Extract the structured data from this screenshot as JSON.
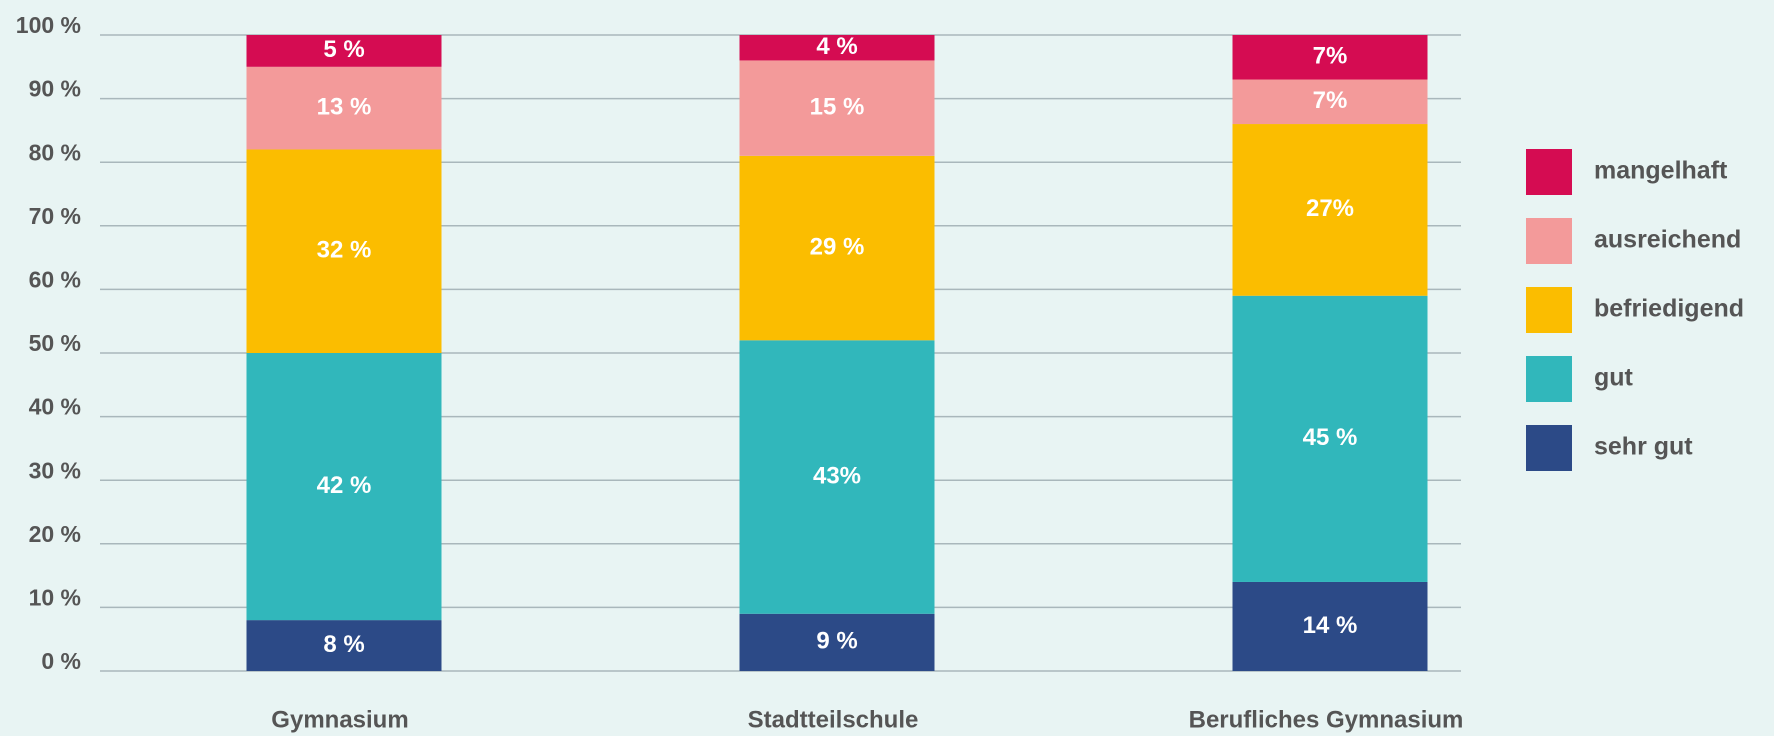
{
  "chart_data": {
    "type": "stacked_bar",
    "categories": [
      "Gymnasium",
      "Stadtteilschule",
      "Berufliches Gymnasium"
    ],
    "series": [
      {
        "name": "sehr gut",
        "color": "#2c4a87",
        "values": [
          8,
          9,
          14
        ],
        "value_labels": [
          "8 %",
          "9 %",
          "14 %"
        ]
      },
      {
        "name": "gut",
        "color": "#31b7bb",
        "values": [
          42,
          43,
          45
        ],
        "value_labels": [
          "42 %",
          "43%",
          "45 %"
        ]
      },
      {
        "name": "befriedigend",
        "color": "#fbbd00",
        "values": [
          32,
          29,
          27
        ],
        "value_labels": [
          "32 %",
          "29 %",
          "27%"
        ]
      },
      {
        "name": "ausreichend",
        "color": "#f39a9a",
        "values": [
          13,
          15,
          7
        ],
        "value_labels": [
          "13 %",
          "15 %",
          "7%"
        ]
      },
      {
        "name": "mangelhaft",
        "color": "#d50c52",
        "values": [
          5,
          4,
          7
        ],
        "value_labels": [
          "5 %",
          "4 %",
          "7%"
        ]
      }
    ],
    "ylim": [
      0,
      100
    ],
    "yticks": [
      {
        "value": 0,
        "label": "0 %"
      },
      {
        "value": 10,
        "label": "10 %"
      },
      {
        "value": 20,
        "label": "20 %"
      },
      {
        "value": 30,
        "label": "30 %"
      },
      {
        "value": 40,
        "label": "40 %"
      },
      {
        "value": 50,
        "label": "50 %"
      },
      {
        "value": 60,
        "label": "60 %"
      },
      {
        "value": 70,
        "label": "70 %"
      },
      {
        "value": 80,
        "label": "80 %"
      },
      {
        "value": 90,
        "label": "90 %"
      },
      {
        "value": 100,
        "label": "100 %"
      }
    ],
    "grid": true,
    "legend": "right"
  }
}
